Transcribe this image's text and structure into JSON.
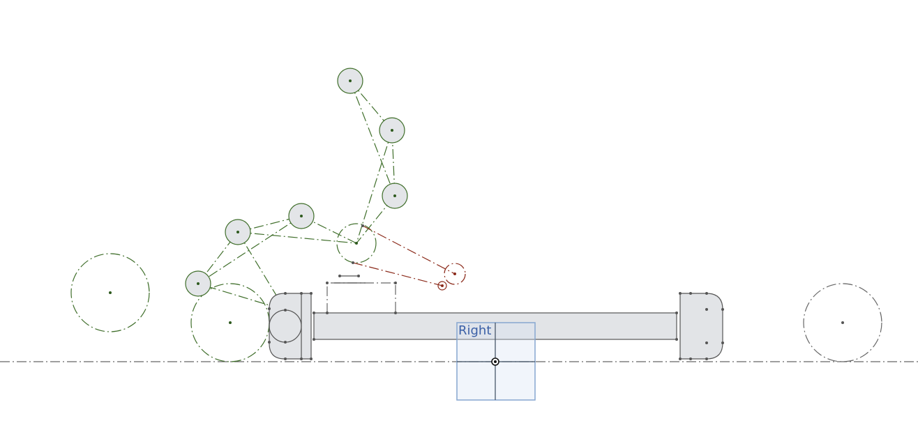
{
  "plane_label": "Right"
}
